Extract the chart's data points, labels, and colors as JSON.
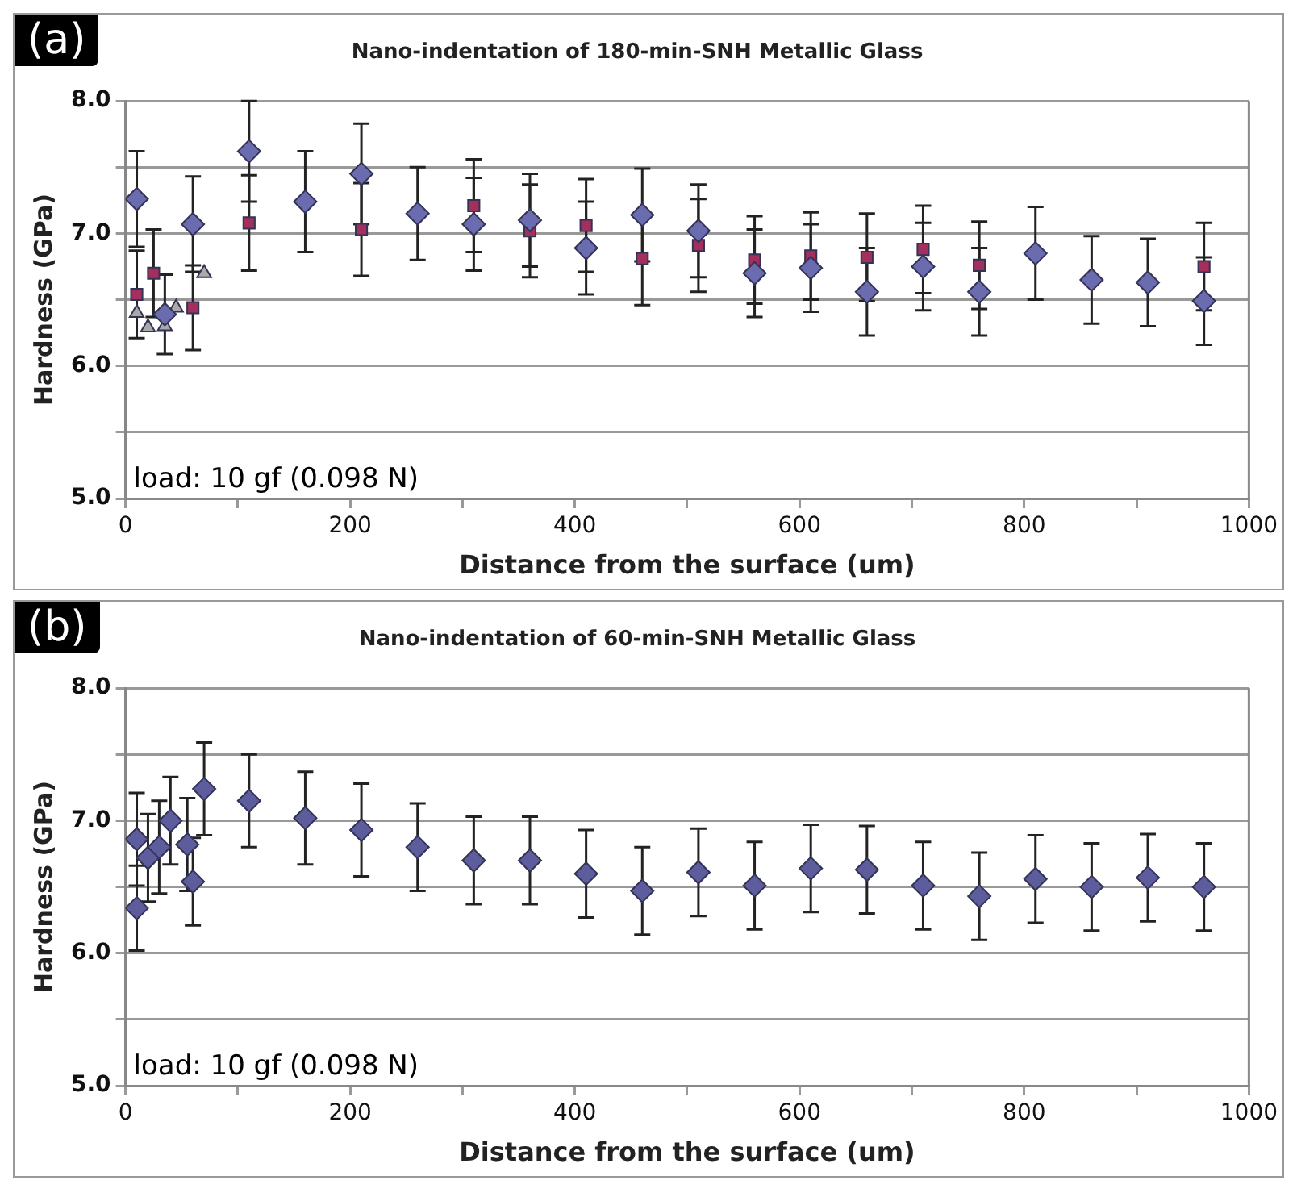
{
  "chart_data": [
    {
      "type": "scatter",
      "title": "Nano-indentation of 180-min-SNH Metallic Glass",
      "xlabel": "Distance from the surface (um)",
      "ylabel": "Hardness (GPa)",
      "annotations": [
        "(a)",
        "load: 10 gf (0.098 N)"
      ],
      "xlim": [
        0,
        1000
      ],
      "xticks": [
        0,
        {
          "value": 100,
          "label": null
        },
        200,
        {
          "value": 300,
          "label": null
        },
        400,
        {
          "value": 500,
          "label": null
        },
        600,
        {
          "value": 700,
          "label": null
        },
        800,
        {
          "value": 900,
          "label": null
        },
        1000
      ],
      "ylim": [
        5,
        8
      ],
      "yticks": [
        {
          "value": 5,
          "label": "5.0"
        },
        {
          "value": 5.5,
          "label": null
        },
        {
          "value": 6,
          "label": "6.0"
        },
        {
          "value": 6.5,
          "label": null
        },
        {
          "value": 7,
          "label": "7.0"
        },
        {
          "value": 7.5,
          "label": null
        },
        {
          "value": 8,
          "label": "8.0"
        }
      ],
      "grid": "y",
      "series": [
        {
          "color": "#6b6bb0",
          "marker": "diamond",
          "x": [
            10,
            35,
            60,
            110,
            160,
            210,
            260,
            310,
            360,
            410,
            460,
            510,
            560,
            610,
            660,
            710,
            760,
            810,
            860,
            910,
            960
          ],
          "values": [
            7.26,
            6.39,
            7.07,
            7.62,
            7.24,
            7.45,
            7.15,
            7.07,
            7.1,
            6.89,
            7.14,
            7.02,
            6.7,
            6.74,
            6.56,
            6.75,
            6.56,
            6.85,
            6.65,
            6.63,
            6.49
          ],
          "errors": [
            0.36,
            0.3,
            0.36,
            0.38,
            0.38,
            0.38,
            0.35,
            0.35,
            0.35,
            0.35,
            0.35,
            0.35,
            0.33,
            0.33,
            0.33,
            0.33,
            0.33,
            0.35,
            0.33,
            0.33,
            0.33
          ]
        },
        {
          "color": "#a3305c",
          "marker": "square",
          "x": [
            10,
            25,
            60,
            110,
            160,
            210,
            260,
            310,
            360,
            410,
            460,
            510,
            560,
            610,
            660,
            710,
            760,
            960
          ],
          "values": [
            6.54,
            6.7,
            6.44,
            7.08,
            null,
            7.03,
            null,
            7.21,
            7.02,
            7.06,
            6.81,
            6.91,
            6.8,
            6.83,
            6.82,
            6.88,
            6.76,
            6.75
          ],
          "errors": [
            0.33,
            0.33,
            0.32,
            0.36,
            null,
            0.35,
            null,
            0.35,
            0.35,
            0.35,
            0.35,
            0.35,
            0.33,
            0.33,
            0.33,
            0.33,
            0.33,
            0.33
          ]
        },
        {
          "color": "#a9a9a9",
          "marker": "triangle",
          "x": [
            10,
            20,
            35,
            45,
            70
          ],
          "values": [
            6.4,
            6.29,
            6.3,
            6.44,
            6.7
          ]
        }
      ]
    },
    {
      "type": "scatter",
      "title": "Nano-indentation of 60-min-SNH Metallic Glass",
      "xlabel": "Distance from the surface (um)",
      "ylabel": "Hardness (GPa)",
      "annotations": [
        "(b)",
        "load: 10 gf (0.098 N)"
      ],
      "xlim": [
        0,
        1000
      ],
      "xticks": [
        0,
        {
          "value": 100,
          "label": null
        },
        200,
        {
          "value": 300,
          "label": null
        },
        400,
        {
          "value": 500,
          "label": null
        },
        600,
        {
          "value": 700,
          "label": null
        },
        800,
        {
          "value": 900,
          "label": null
        },
        1000
      ],
      "ylim": [
        5,
        8
      ],
      "yticks": [
        {
          "value": 5,
          "label": "5.0"
        },
        {
          "value": 5.5,
          "label": null
        },
        {
          "value": 6,
          "label": "6.0"
        },
        {
          "value": 6.5,
          "label": null
        },
        {
          "value": 7,
          "label": "7.0"
        },
        {
          "value": 7.5,
          "label": null
        },
        {
          "value": 8,
          "label": "8.0"
        }
      ],
      "grid": "y",
      "series": [
        {
          "color": "#5d5d9e",
          "marker": "diamond",
          "x": [
            10,
            10,
            20,
            30,
            40,
            55,
            60,
            70,
            110,
            160,
            210,
            260,
            310,
            360,
            410,
            460,
            510,
            560,
            610,
            660,
            710,
            760,
            810,
            860,
            910,
            960
          ],
          "values": [
            6.86,
            6.34,
            6.72,
            6.8,
            7.0,
            6.82,
            6.54,
            7.24,
            7.15,
            7.02,
            6.93,
            6.8,
            6.7,
            6.7,
            6.6,
            6.47,
            6.61,
            6.51,
            6.64,
            6.63,
            6.51,
            6.43,
            6.56,
            6.5,
            6.57,
            6.5
          ],
          "errors": [
            0.35,
            0.32,
            0.33,
            0.35,
            0.33,
            0.35,
            0.33,
            0.35,
            0.35,
            0.35,
            0.35,
            0.33,
            0.33,
            0.33,
            0.33,
            0.33,
            0.33,
            0.33,
            0.33,
            0.33,
            0.33,
            0.33,
            0.33,
            0.33,
            0.33,
            0.33
          ]
        }
      ]
    }
  ]
}
